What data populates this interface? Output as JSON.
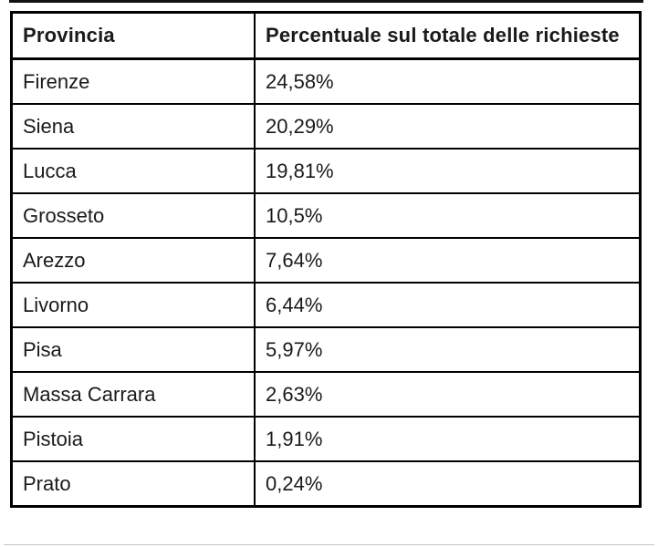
{
  "colors": {
    "background": "#ffffff",
    "border": "#000000",
    "text": "#1a1a1a",
    "artifact_top": "#111111",
    "artifact_bottom": "#c6c6c6"
  },
  "table": {
    "columns": [
      "Provincia",
      "Percentuale sul totale delle richieste"
    ],
    "rows": [
      {
        "provincia": "Firenze",
        "percentuale": "24,58%"
      },
      {
        "provincia": "Siena",
        "percentuale": "20,29%"
      },
      {
        "provincia": "Lucca",
        "percentuale": "19,81%"
      },
      {
        "provincia": "Grosseto",
        "percentuale": "10,5%"
      },
      {
        "provincia": "Arezzo",
        "percentuale": "7,64%"
      },
      {
        "provincia": "Livorno",
        "percentuale": "6,44%"
      },
      {
        "provincia": "Pisa",
        "percentuale": "5,97%"
      },
      {
        "provincia": "Massa Carrara",
        "percentuale": "2,63%"
      },
      {
        "provincia": "Pistoia",
        "percentuale": "1,91%"
      },
      {
        "provincia": "Prato",
        "percentuale": "0,24%"
      }
    ]
  },
  "chart_data": {
    "type": "table",
    "title": "",
    "columns": [
      "Provincia",
      "Percentuale sul totale delle richieste"
    ],
    "categories": [
      "Firenze",
      "Siena",
      "Lucca",
      "Grosseto",
      "Arezzo",
      "Livorno",
      "Pisa",
      "Massa Carrara",
      "Pistoia",
      "Prato"
    ],
    "values": [
      24.58,
      20.29,
      19.81,
      10.5,
      7.64,
      6.44,
      5.97,
      2.63,
      1.91,
      0.24
    ],
    "value_unit": "%",
    "decimal_separator": ",",
    "layout": "two-column table, black 2-3px grid borders, white background, header row bold"
  }
}
